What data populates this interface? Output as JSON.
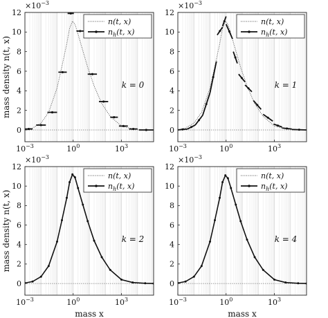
{
  "figure": {
    "y_axis_label": "mass density n(t, x)",
    "x_axis_label": "mass x",
    "exponent_label": "×10−3"
  },
  "chart_data": [
    {
      "type": "line",
      "panel_label": "k = 0",
      "x_scale": "log",
      "xlim": [
        0.001,
        100000
      ],
      "ylim": [
        -0.0012,
        0.012
      ],
      "x_ticks": [
        "10−3",
        "100",
        "103"
      ],
      "y_ticks": [
        "0",
        "2",
        "4",
        "6",
        "8",
        "10",
        "12"
      ],
      "legend": [
        "n(t, x)",
        "nh(t, x)"
      ],
      "legend_position": "top-right",
      "grid": "vertical",
      "series": [
        {
          "name": "n(t, x)",
          "style": "dotted",
          "x": [
            0.001,
            0.003,
            0.01,
            0.03,
            0.1,
            0.2,
            0.4,
            0.6,
            0.9,
            1.3,
            2,
            4,
            8,
            20,
            60,
            200,
            1000,
            5000,
            30000,
            100000
          ],
          "y": [
            5e-05,
            0.0002,
            0.0007,
            0.0018,
            0.0043,
            0.0065,
            0.0088,
            0.0104,
            0.0111,
            0.0108,
            0.0098,
            0.0081,
            0.0064,
            0.0045,
            0.0027,
            0.0014,
            0.0004,
            0.0001,
            2e-05,
            0.0
          ]
        },
        {
          "name": "nh(t, x)",
          "style": "piecewise-constant",
          "segments": [
            {
              "x0": 0.001,
              "x1": 0.003,
              "y": 0.0001
            },
            {
              "x0": 0.005,
              "x1": 0.02,
              "y": 0.0005
            },
            {
              "x0": 0.025,
              "x1": 0.1,
              "y": 0.0018
            },
            {
              "x0": 0.12,
              "x1": 0.4,
              "y": 0.0059
            },
            {
              "x0": 0.45,
              "x1": 1.1,
              "y": 0.0119
            },
            {
              "x0": 1.6,
              "x1": 4.5,
              "y": 0.0101
            },
            {
              "x0": 8,
              "x1": 30,
              "y": 0.0057
            },
            {
              "x0": 40,
              "x1": 150,
              "y": 0.0029
            },
            {
              "x0": 200,
              "x1": 600,
              "y": 0.0013
            },
            {
              "x0": 700,
              "x1": 2500,
              "y": 0.0004
            },
            {
              "x0": 3000,
              "x1": 10000,
              "y": 0.0001
            },
            {
              "x0": 12000,
              "x1": 100000,
              "y": 0.0
            }
          ]
        }
      ]
    },
    {
      "type": "line",
      "panel_label": "k = 1",
      "x_scale": "log",
      "xlim": [
        0.001,
        100000
      ],
      "ylim": [
        -0.0012,
        0.012
      ],
      "x_ticks": [
        "10−3",
        "100",
        "103"
      ],
      "y_ticks": [
        "0",
        "2",
        "4",
        "6",
        "8",
        "10",
        "12"
      ],
      "legend": [
        "n(t, x)",
        "nh(t, x)"
      ],
      "legend_position": "top-right",
      "grid": "vertical",
      "series": [
        {
          "name": "n(t, x)",
          "style": "dotted",
          "x": [
            0.001,
            0.003,
            0.01,
            0.03,
            0.1,
            0.2,
            0.4,
            0.6,
            0.9,
            1.3,
            2,
            4,
            8,
            20,
            60,
            200,
            1000,
            5000,
            30000,
            100000
          ],
          "y": [
            5e-05,
            0.0002,
            0.0007,
            0.0018,
            0.0043,
            0.0065,
            0.0088,
            0.0104,
            0.0111,
            0.0108,
            0.0098,
            0.0081,
            0.0064,
            0.0045,
            0.0027,
            0.0014,
            0.0004,
            0.0001,
            2e-05,
            0.0
          ]
        },
        {
          "name": "nh(t, x)",
          "style": "linear pieces per cell",
          "segments": [
            {
              "x0": 0.001,
              "x1": 0.004,
              "y0": 0.0,
              "y1": 0.0001
            },
            {
              "x0": 0.004,
              "x1": 0.012,
              "y0": 0.0001,
              "y1": 0.0005
            },
            {
              "x0": 0.012,
              "x1": 0.035,
              "y0": 0.0005,
              "y1": 0.0015
            },
            {
              "x0": 0.035,
              "x1": 0.1,
              "y0": 0.0015,
              "y1": 0.0038
            },
            {
              "x0": 0.1,
              "x1": 0.25,
              "y0": 0.0038,
              "y1": 0.007
            },
            {
              "x0": 0.28,
              "x1": 0.6,
              "y0": 0.0097,
              "y1": 0.0105
            },
            {
              "x0": 0.6,
              "x1": 1.0,
              "y0": 0.0106,
              "y1": 0.0116
            },
            {
              "x0": 1.0,
              "x1": 2.5,
              "y0": 0.0108,
              "y1": 0.0093
            },
            {
              "x0": 2.8,
              "x1": 5.0,
              "y0": 0.008,
              "y1": 0.0068
            },
            {
              "x0": 6,
              "x1": 15,
              "y0": 0.0057,
              "y1": 0.0049
            },
            {
              "x0": 15,
              "x1": 40,
              "y0": 0.0046,
              "y1": 0.0039
            },
            {
              "x0": 50,
              "x1": 150,
              "y0": 0.003,
              "y1": 0.0021
            },
            {
              "x0": 200,
              "x1": 800,
              "y0": 0.0016,
              "y1": 0.0009
            },
            {
              "x0": 900,
              "x1": 3000,
              "y0": 0.0006,
              "y1": 0.0003
            },
            {
              "x0": 3000,
              "x1": 12000,
              "y0": 0.0002,
              "y1": 0.0001
            },
            {
              "x0": 12000,
              "x1": 100000,
              "y0": 5e-05,
              "y1": 0.0
            }
          ]
        }
      ]
    },
    {
      "type": "line",
      "panel_label": "k = 2",
      "x_scale": "log",
      "xlim": [
        0.001,
        100000
      ],
      "ylim": [
        -0.0012,
        0.012
      ],
      "x_ticks": [
        "10−3",
        "100",
        "103"
      ],
      "y_ticks": [
        "0",
        "2",
        "4",
        "6",
        "8",
        "10",
        "12"
      ],
      "legend": [
        "n(t, x)",
        "nh(t, x)"
      ],
      "legend_position": "top-right",
      "grid": "vertical",
      "series": [
        {
          "name": "n(t, x)",
          "style": "dotted",
          "x": [
            0.001,
            0.003,
            0.01,
            0.03,
            0.1,
            0.2,
            0.4,
            0.6,
            0.9,
            1.3,
            2,
            4,
            8,
            20,
            60,
            200,
            1000,
            5000,
            30000,
            100000
          ],
          "y": [
            5e-05,
            0.0002,
            0.0007,
            0.0018,
            0.0043,
            0.0065,
            0.0088,
            0.0104,
            0.0111,
            0.0108,
            0.0098,
            0.0081,
            0.0064,
            0.0045,
            0.0027,
            0.0014,
            0.0004,
            0.0001,
            2e-05,
            0.0
          ]
        },
        {
          "name": "nh(t, x)",
          "style": "solid with markers",
          "x": [
            0.001,
            0.003,
            0.01,
            0.03,
            0.1,
            0.2,
            0.4,
            0.6,
            0.9,
            1.3,
            2,
            4,
            8,
            20,
            60,
            200,
            1000,
            5000,
            30000,
            100000
          ],
          "y": [
            5e-05,
            0.0002,
            0.0007,
            0.0018,
            0.0043,
            0.0065,
            0.0088,
            0.0104,
            0.0112,
            0.0109,
            0.0098,
            0.0081,
            0.0064,
            0.0044,
            0.0027,
            0.0014,
            0.0004,
            0.0001,
            2e-05,
            0.0
          ]
        }
      ]
    },
    {
      "type": "line",
      "panel_label": "k = 4",
      "x_scale": "log",
      "xlim": [
        0.001,
        100000
      ],
      "ylim": [
        -0.0012,
        0.012
      ],
      "x_ticks": [
        "10−3",
        "100",
        "103"
      ],
      "y_ticks": [
        "0",
        "2",
        "4",
        "6",
        "8",
        "10",
        "12"
      ],
      "legend": [
        "n(t, x)",
        "nh(t, x)"
      ],
      "legend_position": "top-right",
      "grid": "vertical",
      "series": [
        {
          "name": "n(t, x)",
          "style": "dotted",
          "x": [
            0.001,
            0.003,
            0.01,
            0.03,
            0.1,
            0.2,
            0.4,
            0.6,
            0.9,
            1.3,
            2,
            4,
            8,
            20,
            60,
            200,
            1000,
            5000,
            30000,
            100000
          ],
          "y": [
            5e-05,
            0.0002,
            0.0007,
            0.0018,
            0.0043,
            0.0065,
            0.0088,
            0.0104,
            0.0111,
            0.0108,
            0.0098,
            0.0081,
            0.0064,
            0.0045,
            0.0027,
            0.0014,
            0.0004,
            0.0001,
            2e-05,
            0.0
          ]
        },
        {
          "name": "nh(t, x)",
          "style": "solid with markers",
          "x": [
            0.001,
            0.003,
            0.01,
            0.03,
            0.1,
            0.2,
            0.4,
            0.6,
            0.9,
            1.3,
            2,
            4,
            8,
            20,
            60,
            200,
            1000,
            5000,
            30000,
            100000
          ],
          "y": [
            5e-05,
            0.0002,
            0.0007,
            0.0018,
            0.0043,
            0.0065,
            0.0088,
            0.0104,
            0.0111,
            0.0108,
            0.0098,
            0.0081,
            0.0064,
            0.0045,
            0.0027,
            0.0014,
            0.0004,
            0.0001,
            2e-05,
            0.0
          ]
        }
      ]
    }
  ]
}
